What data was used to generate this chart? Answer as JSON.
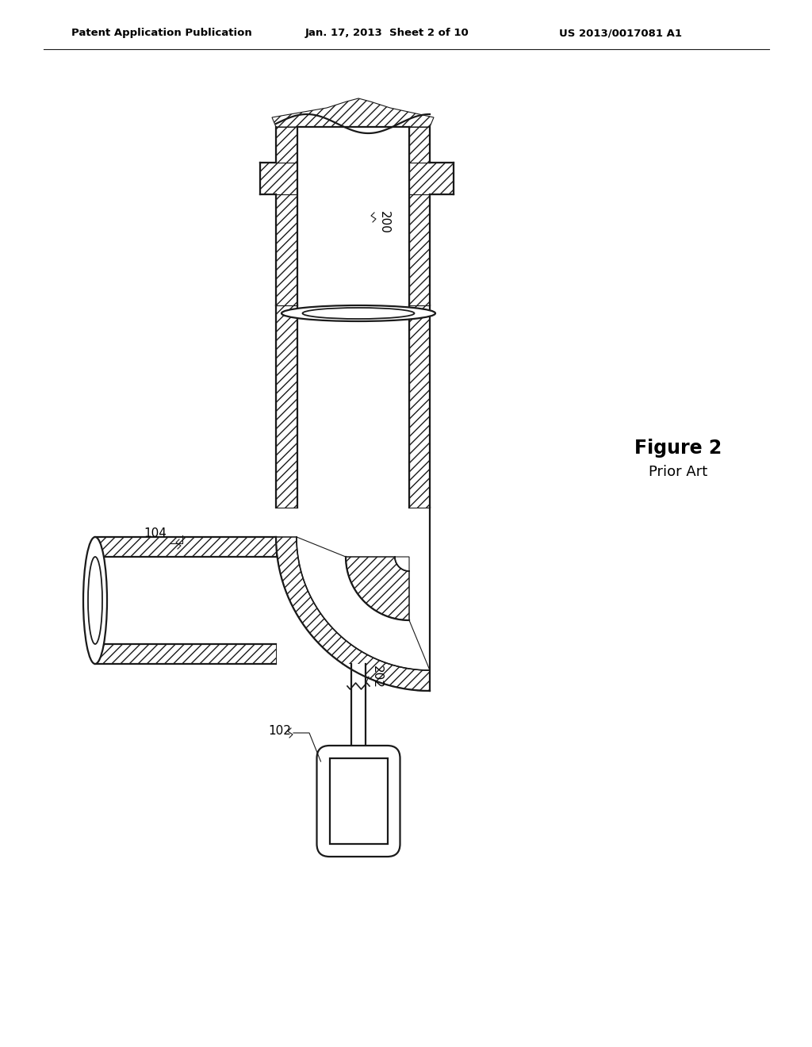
{
  "bg_color": "#ffffff",
  "line_color": "#1a1a1a",
  "header_left": "Patent Application Publication",
  "header_mid": "Jan. 17, 2013  Sheet 2 of 10",
  "header_right": "US 2013/0017081 A1",
  "fig_label": "Figure 2",
  "fig_sublabel": "Prior Art",
  "label_200": "200",
  "label_104": "104",
  "label_102": "102",
  "label_202": "202"
}
